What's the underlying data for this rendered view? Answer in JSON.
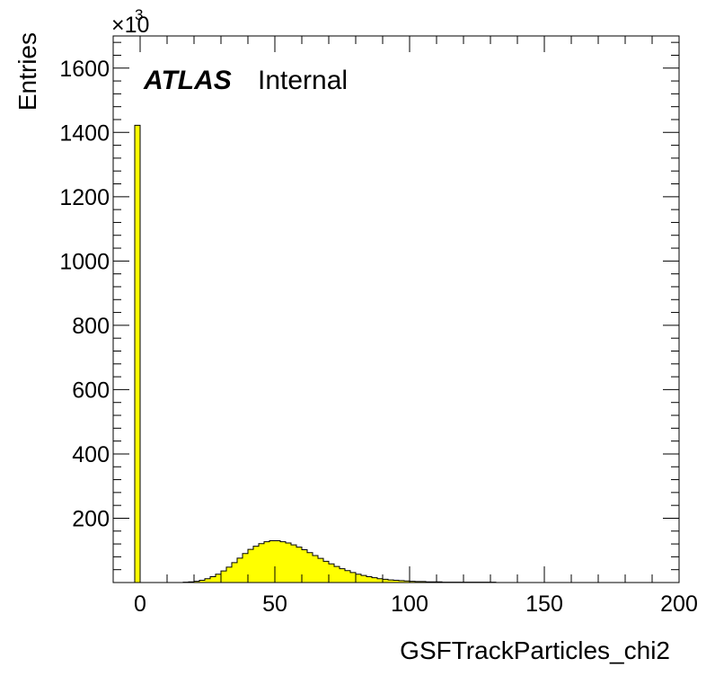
{
  "chart_data": {
    "type": "bar",
    "xlabel": "GSFTrackParticles_chi2",
    "ylabel": "Entries",
    "y_multiplier": "×10",
    "y_multiplier_exponent": "3",
    "xlim": [
      -10,
      200
    ],
    "ylim": [
      0,
      1700
    ],
    "x_ticks": [
      0,
      50,
      100,
      150,
      200
    ],
    "y_ticks": [
      200,
      400,
      600,
      800,
      1000,
      1200,
      1400,
      1600
    ],
    "bin_width": 2,
    "bin_start": -2,
    "values": [
      1422,
      0,
      0,
      0,
      0,
      0,
      0,
      0,
      0,
      1,
      2,
      4,
      7,
      12,
      18,
      26,
      36,
      48,
      62,
      76,
      90,
      103,
      113,
      121,
      127,
      130,
      130,
      127,
      123,
      117,
      110,
      102,
      93,
      84,
      75,
      66,
      58,
      50,
      43,
      37,
      31,
      26,
      22,
      18,
      15,
      12,
      10,
      8,
      7,
      6,
      5,
      4,
      3,
      3,
      2,
      2,
      2,
      1,
      1,
      1,
      1,
      1,
      1,
      1,
      1,
      1,
      1,
      0
    ],
    "fill_color": "#ffff00",
    "line_color": "#000000",
    "grid": false,
    "legend": "none"
  },
  "annotation": {
    "experiment": "ATLAS",
    "status": "Internal"
  }
}
